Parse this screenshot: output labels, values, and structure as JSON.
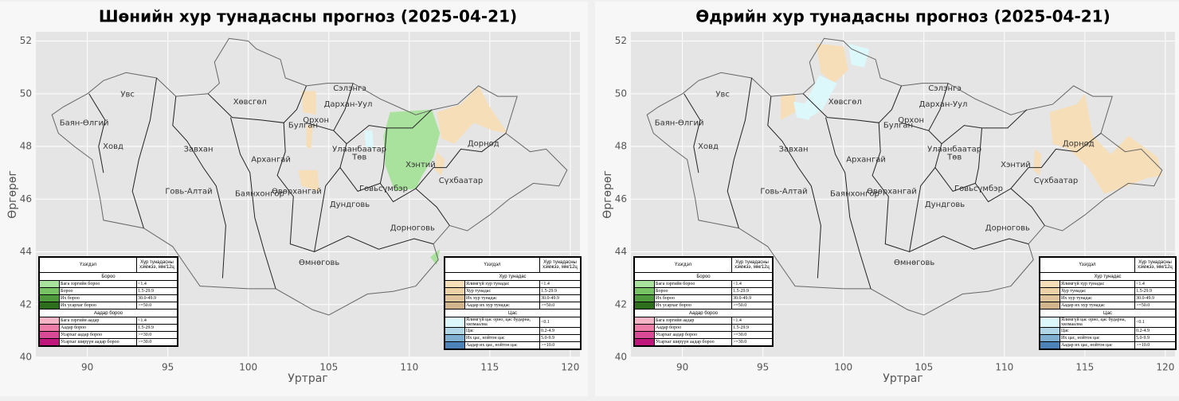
{
  "maps": [
    {
      "title": "Шөнийн хур тунадасны прогноз (2025-04-21)"
    },
    {
      "title": "Өдрийн хур тунадасны прогноз (2025-04-21)"
    }
  ],
  "axes": {
    "xlabel": "Уртраг",
    "ylabel": "Өргөрөг",
    "xlim": [
      86.8,
      120.6
    ],
    "ylim": [
      40,
      52.35
    ],
    "xticks": [
      90,
      95,
      100,
      105,
      110,
      115,
      120
    ],
    "yticks": [
      40,
      42,
      44,
      46,
      48,
      50,
      52
    ]
  },
  "provinces": [
    "Увс",
    "Баян-Өлгий",
    "Ховд",
    "Завхан",
    "Говь-Алтай",
    "Хөвсгөл",
    "Архангай",
    "Баянхонгор",
    "Өвөрхангай",
    "Булган",
    "Орхон",
    "Сэлэнгэ",
    "Дархан-Уул",
    "Улаанбаатар",
    "Төв",
    "Дундговь",
    "Говьсүмбэр",
    "Хэнтий",
    "Дорнод",
    "Сүхбаатар",
    "Дорноговь",
    "Өмнөговь"
  ],
  "legends": [
    {
      "header": [
        "Үзэгдэл",
        "Хур тунадасны хэмжээ, мм/12ц"
      ],
      "sections": [
        {
          "name": "Бороо",
          "rows": [
            {
              "color": "#a8e29c",
              "label": "Бага зэргийн бороо",
              "range": "<1.4"
            },
            {
              "color": "#78c266",
              "label": "Бороо",
              "range": "1.5-29.9"
            },
            {
              "color": "#4f9a3c",
              "label": "Их бороо",
              "range": "30.0-49.9"
            },
            {
              "color": "#2c6e1c",
              "label": "Их усархаг бороо",
              "range": ">=50.0"
            }
          ]
        },
        {
          "name": "Аадар бороо",
          "rows": [
            {
              "color": "#f6b5c6",
              "label": "Бага зэргийн аадар",
              "range": "<1.4"
            },
            {
              "color": "#ee7ea8",
              "label": "Аадар бороо",
              "range": "1.5-29.9"
            },
            {
              "color": "#d84a96",
              "label": "Усархаг аадар бороо",
              "range": ">=30.0"
            },
            {
              "color": "#c0157a",
              "label": "Усархаг ширүүн аадар бороо",
              "range": ">=30.0"
            }
          ]
        }
      ]
    },
    {
      "header": [
        "Үзэгдэл",
        "Хур тунадасны хэмжээ, мм/12ц"
      ],
      "sections": [
        {
          "name": "Хур тунадас",
          "rows": [
            {
              "color": "#f6dfb8",
              "label": "Ялимгүй хур тунадас",
              "range": "<1.4"
            },
            {
              "color": "#ecd2a6",
              "label": "Хур тунадас",
              "range": "1.5-29.9"
            },
            {
              "color": "#dfc49c",
              "label": "Их хур тунадас",
              "range": "30.0-49.9"
            },
            {
              "color": "#d0b58c",
              "label": "Аадар их хур тунадас",
              "range": ">=50.0"
            }
          ]
        },
        {
          "name": "Цас",
          "rows": [
            {
              "color": "#dcf8fb",
              "label": "Ялимгүй цас орно, цас бударна, хялмаална",
              "range": "<0.1"
            },
            {
              "color": "#b2d8e8",
              "label": "Цас",
              "range": "0.2-4.9"
            },
            {
              "color": "#7fb0d2",
              "label": "Их цас, нойтон цас",
              "range": "5.0-9.9"
            },
            {
              "color": "#4c82b8",
              "label": "Аадар их цас, нойтон цас",
              "range": ">=10.0"
            }
          ]
        }
      ]
    }
  ]
}
